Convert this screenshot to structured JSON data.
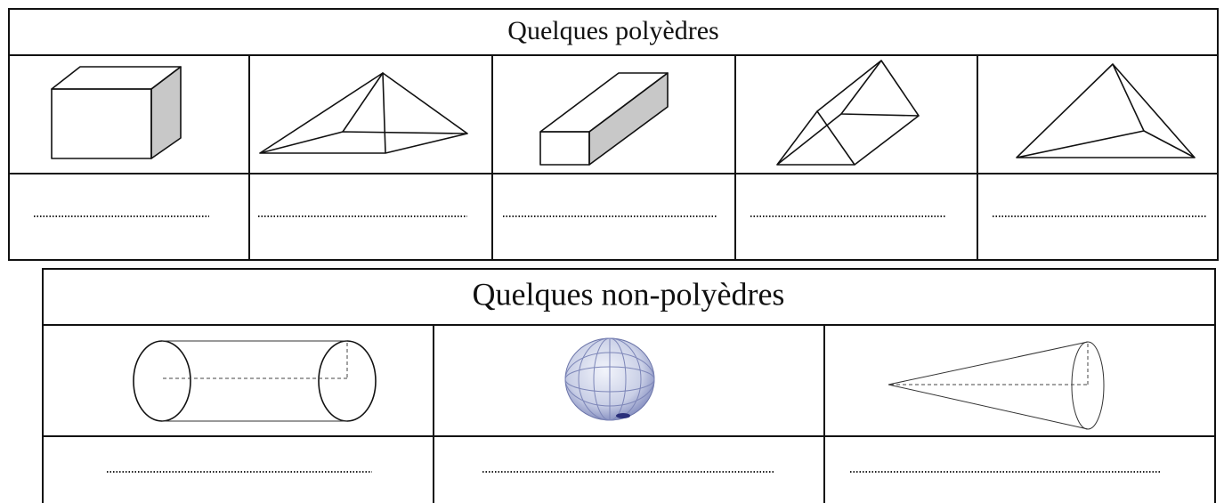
{
  "sections": [
    {
      "title": "Quelques polyèdres"
    },
    {
      "title": "Quelques non-polyèdres"
    }
  ]
}
